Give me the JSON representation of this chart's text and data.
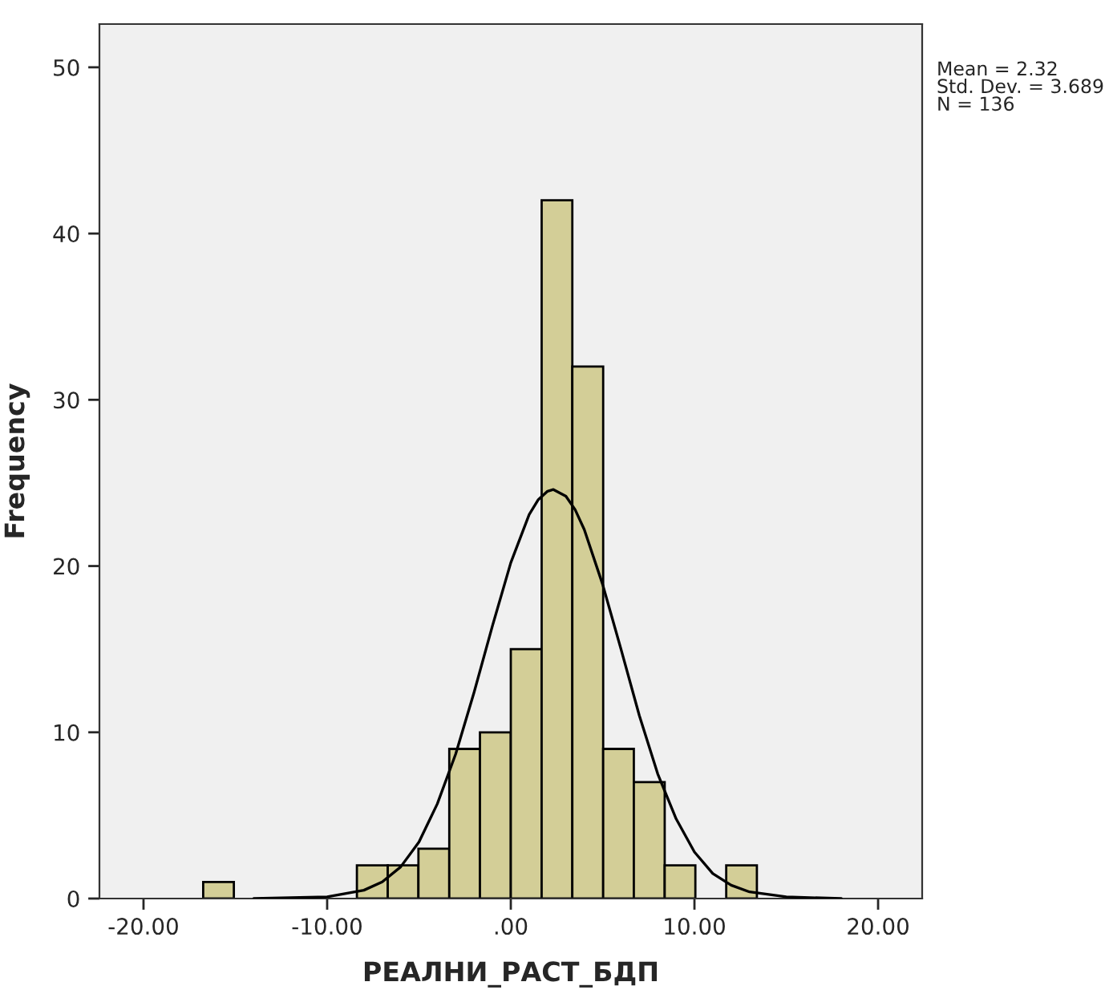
{
  "chart_data": {
    "type": "histogram",
    "xlabel": "РЕАЛНИ_РАСТ_БДП",
    "ylabel": "Frequency",
    "annotations": [
      "Mean = 2.32\nStd. Dev. = 3.689\nN = 136"
    ],
    "series": [
      {
        "color": "#d3ce97",
        "bins": [
          -16.75,
          -15.08,
          -13.4,
          -11.73,
          -10.05,
          -8.38,
          -6.7,
          -5.03,
          -3.35,
          -1.68,
          0,
          1.68,
          3.35,
          5.03,
          6.7,
          8.38,
          10.05,
          11.73,
          13.4
        ],
        "values": [
          1,
          0,
          0,
          0,
          0,
          2,
          2,
          3,
          9,
          10,
          15,
          42,
          32,
          9,
          7,
          2,
          0,
          2
        ]
      },
      {
        "type": "line",
        "color": "#000000",
        "x": [
          -14,
          -10,
          -8,
          -7,
          -6,
          -5,
          -4,
          -3,
          -2,
          -1,
          0,
          1,
          1.5,
          2,
          2.32,
          3,
          3.5,
          4,
          5,
          6,
          7,
          8,
          9,
          10,
          11,
          12,
          13,
          15,
          18
        ],
        "values": [
          0,
          0.1,
          0.5,
          1.0,
          1.9,
          3.4,
          5.7,
          8.7,
          12.4,
          16.4,
          20.2,
          23.1,
          24.0,
          24.5,
          24.6,
          24.2,
          23.4,
          22.2,
          18.9,
          15.0,
          11,
          7.5,
          4.8,
          2.8,
          1.5,
          0.8,
          0.4,
          0.1,
          0
        ]
      }
    ],
    "xlim": [
      -22.4,
      22.4
    ],
    "ylim": [
      0,
      52.6
    ],
    "xticks": [
      {
        "value": -20,
        "label": "-20.00"
      },
      {
        "value": -10,
        "label": "-10.00"
      },
      {
        "value": 0,
        "label": ".00"
      },
      {
        "value": 10,
        "label": "10.00"
      },
      {
        "value": 20,
        "label": "20.00"
      }
    ],
    "yticks": [
      0,
      10,
      20,
      30,
      40,
      50
    ],
    "grid": false,
    "legend": false
  }
}
